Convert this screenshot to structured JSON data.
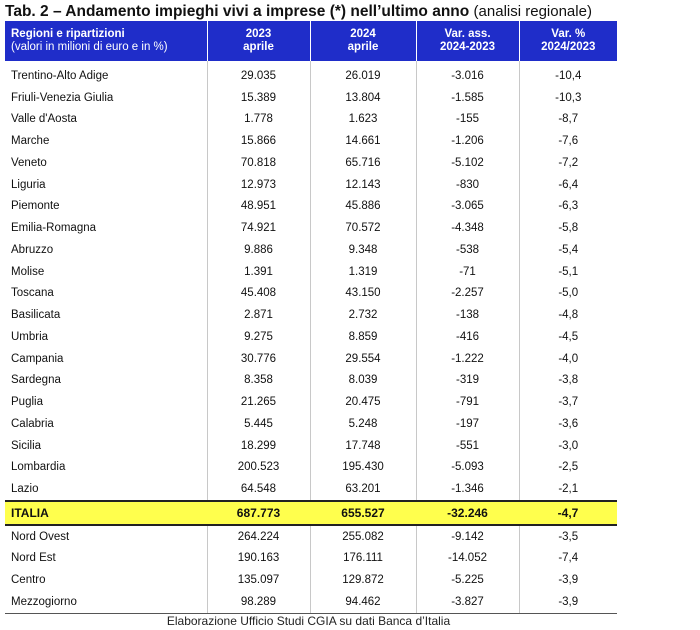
{
  "title": {
    "main": "Tab. 2 – Andamento impieghi vivi a imprese (*) nell’ultimo anno",
    "sub": "(analisi regionale)"
  },
  "table": {
    "headers": [
      {
        "line1": "Regioni e ripartizioni",
        "line2": "(valori in milioni di euro e in %)"
      },
      {
        "line1": "2023",
        "line2": "aprile"
      },
      {
        "line1": "2024",
        "line2": "aprile"
      },
      {
        "line1": "Var. ass.",
        "line2": "2024-2023"
      },
      {
        "line1": "Var. %",
        "line2": "2024/2023"
      }
    ],
    "regions": [
      [
        "Trentino-Alto Adige",
        "29.035",
        "26.019",
        "-3.016",
        "-10,4"
      ],
      [
        "Friuli-Venezia Giulia",
        "15.389",
        "13.804",
        "-1.585",
        "-10,3"
      ],
      [
        "Valle d'Aosta",
        "1.778",
        "1.623",
        "-155",
        "-8,7"
      ],
      [
        "Marche",
        "15.866",
        "14.661",
        "-1.206",
        "-7,6"
      ],
      [
        "Veneto",
        "70.818",
        "65.716",
        "-5.102",
        "-7,2"
      ],
      [
        "Liguria",
        "12.973",
        "12.143",
        "-830",
        "-6,4"
      ],
      [
        "Piemonte",
        "48.951",
        "45.886",
        "-3.065",
        "-6,3"
      ],
      [
        "Emilia-Romagna",
        "74.921",
        "70.572",
        "-4.348",
        "-5,8"
      ],
      [
        "Abruzzo",
        "9.886",
        "9.348",
        "-538",
        "-5,4"
      ],
      [
        "Molise",
        "1.391",
        "1.319",
        "-71",
        "-5,1"
      ],
      [
        "Toscana",
        "45.408",
        "43.150",
        "-2.257",
        "-5,0"
      ],
      [
        "Basilicata",
        "2.871",
        "2.732",
        "-138",
        "-4,8"
      ],
      [
        "Umbria",
        "9.275",
        "8.859",
        "-416",
        "-4,5"
      ],
      [
        "Campania",
        "30.776",
        "29.554",
        "-1.222",
        "-4,0"
      ],
      [
        "Sardegna",
        "8.358",
        "8.039",
        "-319",
        "-3,8"
      ],
      [
        "Puglia",
        "21.265",
        "20.475",
        "-791",
        "-3,7"
      ],
      [
        "Calabria",
        "5.445",
        "5.248",
        "-197",
        "-3,6"
      ],
      [
        "Sicilia",
        "18.299",
        "17.748",
        "-551",
        "-3,0"
      ],
      [
        "Lombardia",
        "200.523",
        "195.430",
        "-5.093",
        "-2,5"
      ],
      [
        "Lazio",
        "64.548",
        "63.201",
        "-1.346",
        "-2,1"
      ]
    ],
    "italia": [
      "ITALIA",
      "687.773",
      "655.527",
      "-32.246",
      "-4,7"
    ],
    "areas": [
      [
        "Nord Ovest",
        "264.224",
        "255.082",
        "-9.142",
        "-3,5"
      ],
      [
        "Nord Est",
        "190.163",
        "176.111",
        "-14.052",
        "-7,4"
      ],
      [
        "Centro",
        "135.097",
        "129.872",
        "-5.225",
        "-3,9"
      ],
      [
        "Mezzogiorno",
        "98.289",
        "94.462",
        "-3.827",
        "-3,9"
      ]
    ]
  },
  "source_note": "Elaborazione Ufficio Studi CGIA su dati Banca d’Italia",
  "colors": {
    "header_bg": "#1f2dc9",
    "italia_bg": "#ffff4d"
  }
}
